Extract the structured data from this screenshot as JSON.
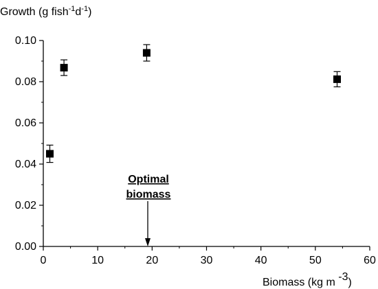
{
  "chart_data": {
    "type": "scatter",
    "ylabel": {
      "main": "Growth (g fish",
      "sup1": "-1",
      "mid": "d",
      "sup2": "-1",
      "end": ")"
    },
    "xlabel": {
      "main": "Biomass (kg m ",
      "sup": "-3",
      "end": ")"
    },
    "xlim": [
      0,
      60
    ],
    "ylim": [
      0,
      0.1
    ],
    "xticks": [
      "0",
      "10",
      "20",
      "30",
      "40",
      "50",
      "60"
    ],
    "yticks": [
      "0.00",
      "0.02",
      "0.04",
      "0.06",
      "0.08",
      "0.10"
    ],
    "grid": false,
    "series": [
      {
        "marker": "square",
        "color": "#000000",
        "points": [
          {
            "x": 1.2,
            "y": 0.045,
            "err": 0.0042
          },
          {
            "x": 3.8,
            "y": 0.0868,
            "err": 0.0038
          },
          {
            "x": 19.0,
            "y": 0.094,
            "err": 0.004
          },
          {
            "x": 54.0,
            "y": 0.0812,
            "err": 0.0037
          }
        ]
      }
    ],
    "annotation": {
      "lines": [
        "Optimal",
        "biomass"
      ],
      "x": 19.2,
      "arrow_to_y": 0.0
    }
  }
}
